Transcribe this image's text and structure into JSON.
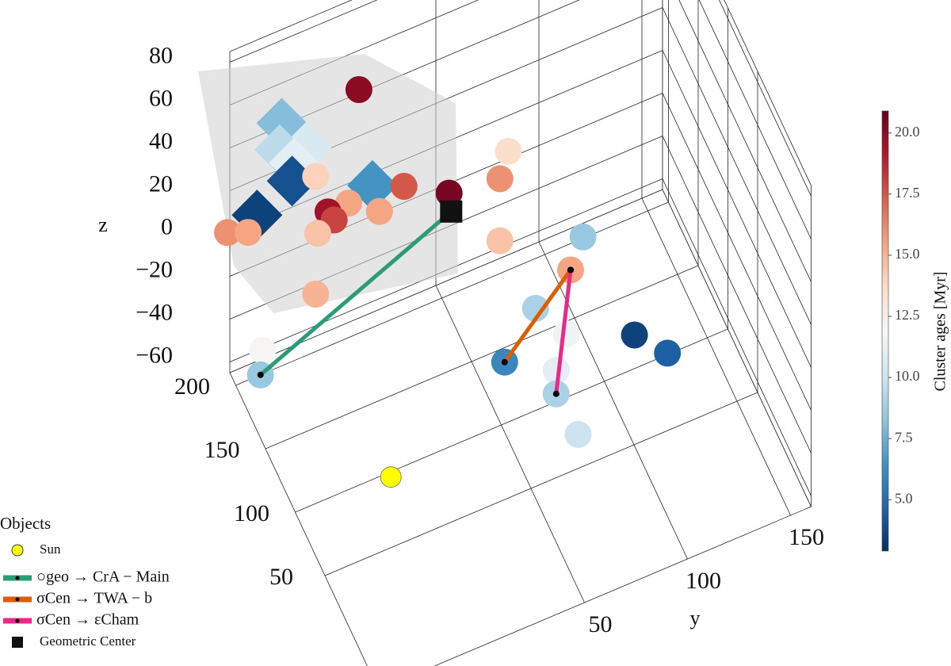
{
  "chart_data": {
    "type": "scatter3d",
    "xlim": [
      -40,
      210
    ],
    "ylim": [
      -50,
      160
    ],
    "zlim": [
      -65,
      85
    ],
    "xticks": [
      50,
      100,
      150,
      200
    ],
    "yticks": [
      50,
      100,
      150
    ],
    "zticks": [
      {
        "value": -60,
        "label": "−60"
      },
      {
        "value": -40,
        "label": "−40"
      },
      {
        "value": -20,
        "label": "−20"
      },
      0,
      20,
      40,
      60,
      80
    ],
    "ylabel": "y",
    "zlabel": "z",
    "grid": true,
    "colorbar": {
      "label": "Cluster ages [Myr]",
      "colormap": "RdBu_r",
      "clim": [
        2.9,
        20.9
      ],
      "ticks": [
        {
          "value": 5,
          "label": "5.0"
        },
        {
          "value": 7.5,
          "label": "7.5"
        },
        {
          "value": 10,
          "label": "10.0"
        },
        {
          "value": 12.5,
          "label": "12.5"
        },
        {
          "value": 15,
          "label": "15.0"
        },
        {
          "value": 17.5,
          "label": "17.5"
        },
        {
          "value": 20,
          "label": "20.0"
        }
      ]
    },
    "legend": {
      "title": "Objects",
      "loc": "lower left"
    },
    "series": [
      {
        "name": "Sun",
        "marker": "circle",
        "color": "#ffff00",
        "x": [
          50
        ],
        "y": [
          -18
        ],
        "z": [
          -32
        ]
      },
      {
        "marker": "diamond",
        "x": [
          185,
          185,
          185,
          185,
          185,
          185,
          185
        ],
        "y": [
          -32,
          -20,
          -33,
          -26,
          -27,
          -44,
          12
        ],
        "z": [
          59,
          43,
          47,
          38,
          30,
          21,
          12
        ],
        "c": [
          8,
          10.5,
          9.5,
          11,
          4,
          3.5,
          6.5
        ]
      },
      {
        "marker": "circle",
        "x": [
          180,
          140,
          130,
          160,
          170,
          180,
          180,
          180,
          180,
          180,
          200,
          200,
          180,
          130,
          180,
          70,
          70,
          70,
          70,
          70,
          70,
          70,
          70,
          70,
          40,
          200,
          200
        ],
        "y": [
          4,
          65,
          58,
          42,
          23,
          -17,
          -1,
          -11,
          14,
          -8,
          -54,
          -44,
          -16,
          58,
          -17,
          81,
          75,
          58,
          73,
          106,
          122,
          43,
          68,
          68,
          70,
          -37,
          -38
        ],
        "z": [
          63,
          33,
          29,
          11,
          16,
          31,
          12,
          12,
          2,
          7,
          8,
          4,
          4,
          0,
          -24,
          28,
          15,
          4,
          -14,
          -28,
          -43,
          -15,
          -29,
          -40,
          -42,
          -54,
          -65
        ],
        "c": [
          20,
          13.5,
          16,
          20.5,
          17.5,
          14,
          15.5,
          19.5,
          15.5,
          18,
          16,
          15.5,
          14.5,
          14.5,
          15,
          8.5,
          15.5,
          9,
          11.5,
          3.5,
          4.5,
          6,
          11,
          9,
          10,
          12,
          8.5
        ]
      },
      {
        "name": "○geo → CrA − Main",
        "marker": "line",
        "color": "#2a9d78",
        "x": [
          160,
          200
        ],
        "y": [
          43,
          -38
        ],
        "z": [
          2,
          -65
        ]
      },
      {
        "name": "σCen → TWA − b",
        "marker": "line",
        "color": "#d95f02",
        "x": [
          70,
          70
        ],
        "y": [
          75,
          43
        ],
        "z": [
          15,
          -15
        ]
      },
      {
        "name": "σCen → εCham",
        "marker": "line",
        "color": "#e7298a",
        "x": [
          70,
          70
        ],
        "y": [
          75,
          68
        ],
        "z": [
          15,
          -40
        ]
      },
      {
        "name": "Geometric Center",
        "marker": "square",
        "color": "#111111",
        "x": [
          160
        ],
        "y": [
          43
        ],
        "z": [
          2
        ]
      }
    ]
  }
}
